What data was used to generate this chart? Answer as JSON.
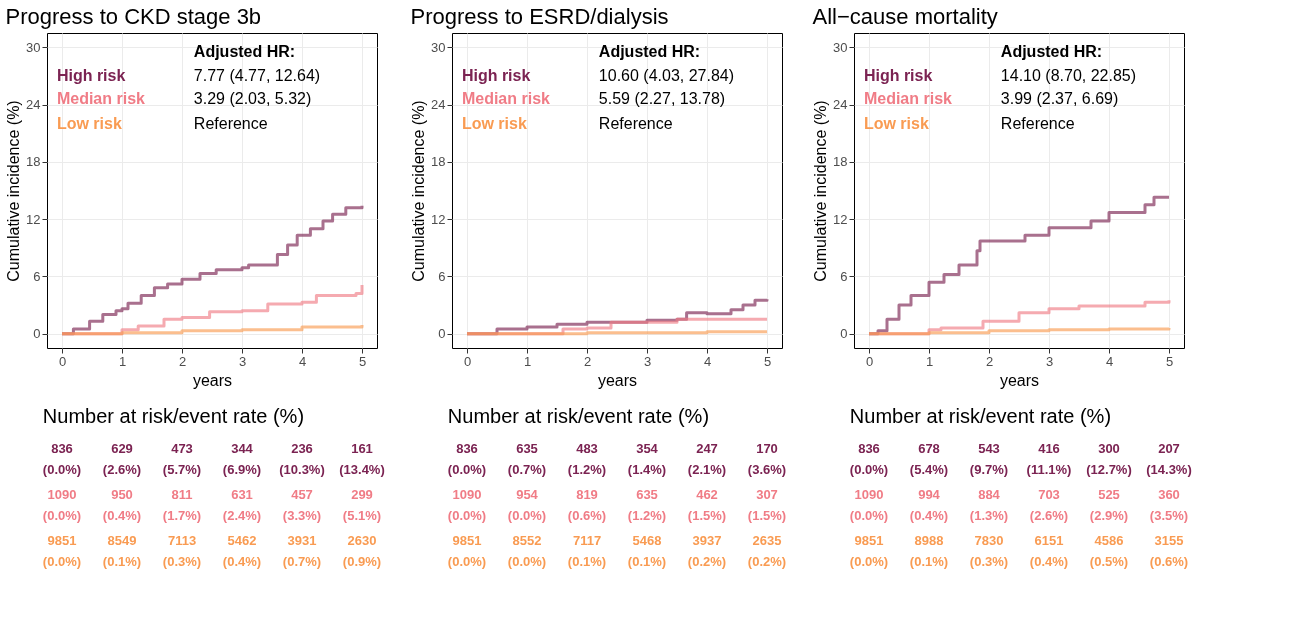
{
  "chart_data": [
    {
      "type": "step",
      "title": "Progress to CKD stage 3b",
      "xlabel": "years",
      "ylabel": "Cumulative incidence (%)",
      "xlim": [
        -0.25,
        5.25
      ],
      "ylim": [
        -1.5,
        31.5
      ],
      "xticks": [
        0,
        1,
        2,
        3,
        4,
        5
      ],
      "yticks": [
        0,
        6,
        12,
        18,
        24,
        30
      ],
      "grid": true,
      "legend": "top left",
      "line_style": "solid",
      "series": [
        {
          "name": "High risk",
          "color": "#7b2352",
          "x": [
            0,
            0.19,
            0.46,
            0.68,
            0.9,
            1.0,
            1.1,
            1.32,
            1.54,
            1.76,
            2.0,
            2.3,
            2.57,
            3.0,
            3.11,
            3.54,
            3.59,
            3.76,
            3.92,
            4.0,
            4.14,
            4.35,
            4.51,
            4.73,
            5.0
          ],
          "values": [
            0,
            0.5,
            1.3,
            2.0,
            2.4,
            2.6,
            3.2,
            4.0,
            4.8,
            5.2,
            5.7,
            6.3,
            6.7,
            6.9,
            7.2,
            7.2,
            8.3,
            9.3,
            10.3,
            10.3,
            11.0,
            11.8,
            12.5,
            13.2,
            13.4
          ]
        },
        {
          "name": "Median risk",
          "color": "#f07c86",
          "x": [
            0,
            1.0,
            1.1,
            1.27,
            1.7,
            2.0,
            2.46,
            3.0,
            3.43,
            4.0,
            4.24,
            4.9,
            5.0
          ],
          "values": [
            0,
            0.4,
            0.4,
            0.8,
            1.5,
            1.7,
            2.3,
            2.4,
            3.1,
            3.3,
            4.0,
            4.2,
            5.1
          ]
        },
        {
          "name": "Low risk",
          "color": "#f99b52",
          "x": [
            0,
            1,
            2,
            3,
            4,
            5
          ],
          "values": [
            0,
            0.1,
            0.3,
            0.4,
            0.7,
            0.9
          ]
        }
      ],
      "annotations": [
        "Adjusted HR:",
        "7.77 (4.77, 12.64)",
        "3.29 (2.03, 5.32)",
        "Reference",
        "Number at risk/event rate (%)",
        "836",
        "629",
        "473",
        "344",
        "236",
        "161",
        "(0.0%)",
        "(2.6%)",
        "(5.7%)",
        "(6.9%)",
        "(10.3%)",
        "(13.4%)",
        "1090",
        "950",
        "811",
        "631",
        "457",
        "299",
        "(0.0%)",
        "(0.4%)",
        "(1.7%)",
        "(2.4%)",
        "(3.3%)",
        "(5.1%)",
        "9851",
        "8549",
        "7113",
        "5462",
        "3931",
        "2630",
        "(0.0%)",
        "(0.1%)",
        "(0.3%)",
        "(0.4%)",
        "(0.7%)",
        "(0.9%)"
      ]
    },
    {
      "type": "step",
      "title": "Progress to ESRD/dialysis",
      "xlabel": "years",
      "ylabel": "Cumulative incidence (%)",
      "xlim": [
        -0.25,
        5.25
      ],
      "ylim": [
        -1.5,
        31.5
      ],
      "xticks": [
        0,
        1,
        2,
        3,
        4,
        5
      ],
      "yticks": [
        0,
        6,
        12,
        18,
        24,
        30
      ],
      "grid": true,
      "legend": "top left",
      "line_style": "solid",
      "series": [
        {
          "name": "High risk",
          "color": "#7b2352",
          "x": [
            0,
            0.5,
            1.0,
            1.5,
            2.0,
            3.0,
            3.5,
            3.66,
            4.0,
            4.4,
            4.6,
            4.8,
            5.0
          ],
          "values": [
            0,
            0.5,
            0.7,
            1.0,
            1.2,
            1.4,
            1.5,
            2.2,
            2.1,
            2.5,
            3.0,
            3.5,
            3.6
          ]
        },
        {
          "name": "Median risk",
          "color": "#f07c86",
          "x": [
            0,
            1.1,
            1.6,
            2.0,
            2.4,
            3.0,
            3.5,
            4.0,
            5.0
          ],
          "values": [
            0,
            0,
            0.5,
            0.6,
            1.2,
            1.2,
            1.5,
            1.5,
            1.5
          ]
        },
        {
          "name": "Low risk",
          "color": "#f99b52",
          "x": [
            0,
            1,
            2,
            3,
            4,
            5
          ],
          "values": [
            0,
            0,
            0.1,
            0.1,
            0.2,
            0.2
          ]
        }
      ],
      "annotations": [
        "Adjusted HR:",
        "10.60 (4.03, 27.84)",
        "5.59 (2.27, 13.78)",
        "Reference",
        "Number at risk/event rate (%)",
        "836",
        "635",
        "483",
        "354",
        "247",
        "170",
        "(0.0%)",
        "(0.7%)",
        "(1.2%)",
        "(1.4%)",
        "(2.1%)",
        "(3.6%)",
        "1090",
        "954",
        "819",
        "635",
        "462",
        "307",
        "(0.0%)",
        "(0.0%)",
        "(0.6%)",
        "(1.2%)",
        "(1.5%)",
        "(1.5%)",
        "9851",
        "8552",
        "7117",
        "5468",
        "3937",
        "2635",
        "(0.0%)",
        "(0.0%)",
        "(0.1%)",
        "(0.1%)",
        "(0.2%)",
        "(0.2%)"
      ]
    },
    {
      "type": "step",
      "title": "All−cause mortality",
      "xlabel": "years",
      "ylabel": "Cumulative incidence (%)",
      "xlim": [
        -0.25,
        5.25
      ],
      "ylim": [
        -1.5,
        31.5
      ],
      "xticks": [
        0,
        1,
        2,
        3,
        4,
        5
      ],
      "yticks": [
        0,
        6,
        12,
        18,
        24,
        30
      ],
      "grid": true,
      "legend": "top left",
      "line_style": "solid",
      "series": [
        {
          "name": "High risk",
          "color": "#7b2352",
          "x": [
            0,
            0.15,
            0.3,
            0.5,
            0.7,
            1.0,
            1.25,
            1.5,
            1.8,
            1.85,
            2.0,
            2.4,
            2.6,
            3.0,
            3.5,
            3.7,
            4.0,
            4.6,
            4.75,
            5.0
          ],
          "values": [
            0,
            0.3,
            1.5,
            3.0,
            4.0,
            5.4,
            6.2,
            7.2,
            8.7,
            9.7,
            9.7,
            9.7,
            10.3,
            11.1,
            11.1,
            11.8,
            12.7,
            13.5,
            14.3,
            14.3
          ]
        },
        {
          "name": "Median risk",
          "color": "#f07c86",
          "x": [
            0,
            1.0,
            1.2,
            1.9,
            2.0,
            2.5,
            3.0,
            3.5,
            4.0,
            4.6,
            5.0
          ],
          "values": [
            0,
            0.4,
            0.6,
            1.3,
            1.3,
            2.2,
            2.6,
            2.9,
            2.9,
            3.3,
            3.5
          ]
        },
        {
          "name": "Low risk",
          "color": "#f99b52",
          "x": [
            0,
            1,
            2,
            3,
            4,
            5
          ],
          "values": [
            0,
            0.1,
            0.3,
            0.4,
            0.5,
            0.6
          ]
        }
      ],
      "annotations": [
        "Adjusted HR:",
        "14.10 (8.70, 22.85)",
        "3.99 (2.37, 6.69)",
        "Reference",
        "Number at risk/event rate (%)",
        "836",
        "678",
        "543",
        "416",
        "300",
        "207",
        "(0.0%)",
        "(5.4%)",
        "(9.7%)",
        "(11.1%)",
        "(12.7%)",
        "(14.3%)",
        "1090",
        "994",
        "884",
        "703",
        "525",
        "360",
        "(0.0%)",
        "(0.4%)",
        "(1.3%)",
        "(2.6%)",
        "(2.9%)",
        "(3.5%)",
        "9851",
        "8988",
        "7830",
        "6151",
        "4586",
        "3155",
        "(0.0%)",
        "(0.1%)",
        "(0.3%)",
        "(0.4%)",
        "(0.5%)",
        "(0.6%)"
      ]
    }
  ]
}
